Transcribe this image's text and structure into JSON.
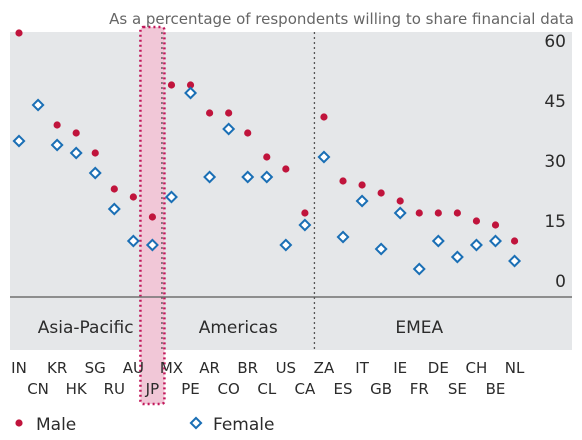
{
  "chart_data": {
    "type": "scatter",
    "subtitle": "As a percentage of respondents willing to share financial data",
    "ylim": [
      -13,
      66
    ],
    "yticks": [
      0,
      15,
      30,
      45,
      60
    ],
    "categories": [
      "IN",
      "CN",
      "KR",
      "HK",
      "SG",
      "RU",
      "AU",
      "JP",
      "MX",
      "PE",
      "AR",
      "CO",
      "BR",
      "CL",
      "US",
      "CA",
      "ZA",
      "ES",
      "IT",
      "GB",
      "IE",
      "FR",
      "DE",
      "SE",
      "CH",
      "BE",
      "NL"
    ],
    "regions": [
      {
        "name": "Asia-Pacific",
        "from": "IN",
        "to": "JP"
      },
      {
        "name": "Americas",
        "from": "MX",
        "to": "CA"
      },
      {
        "name": "EMEA",
        "from": "ZA",
        "to": "NL"
      }
    ],
    "highlight": "JP",
    "series": [
      {
        "name": "Male",
        "marker": "dot",
        "color": "#c0143c",
        "values": [
          66,
          48,
          43,
          41,
          36,
          27,
          25,
          20,
          53,
          53,
          46,
          46,
          41,
          35,
          32,
          21,
          45,
          29,
          28,
          26,
          24,
          21,
          21,
          21,
          19,
          18,
          14
        ]
      },
      {
        "name": "Female",
        "marker": "diamond",
        "color": "#1a6fb5",
        "values": [
          39,
          48,
          38,
          36,
          31,
          22,
          14,
          13,
          25,
          51,
          30,
          42,
          30,
          30,
          13,
          18,
          35,
          15,
          24,
          12,
          21,
          7,
          14,
          10,
          13,
          14,
          9
        ]
      }
    ],
    "grid": false,
    "legend_position": "bottom-left"
  },
  "colors": {
    "panel_background": "#e5e7e9",
    "zero_line": "#707070",
    "highlight_fill": "#f1c7d7",
    "highlight_border": "#c2185b",
    "divider": "#555555"
  }
}
